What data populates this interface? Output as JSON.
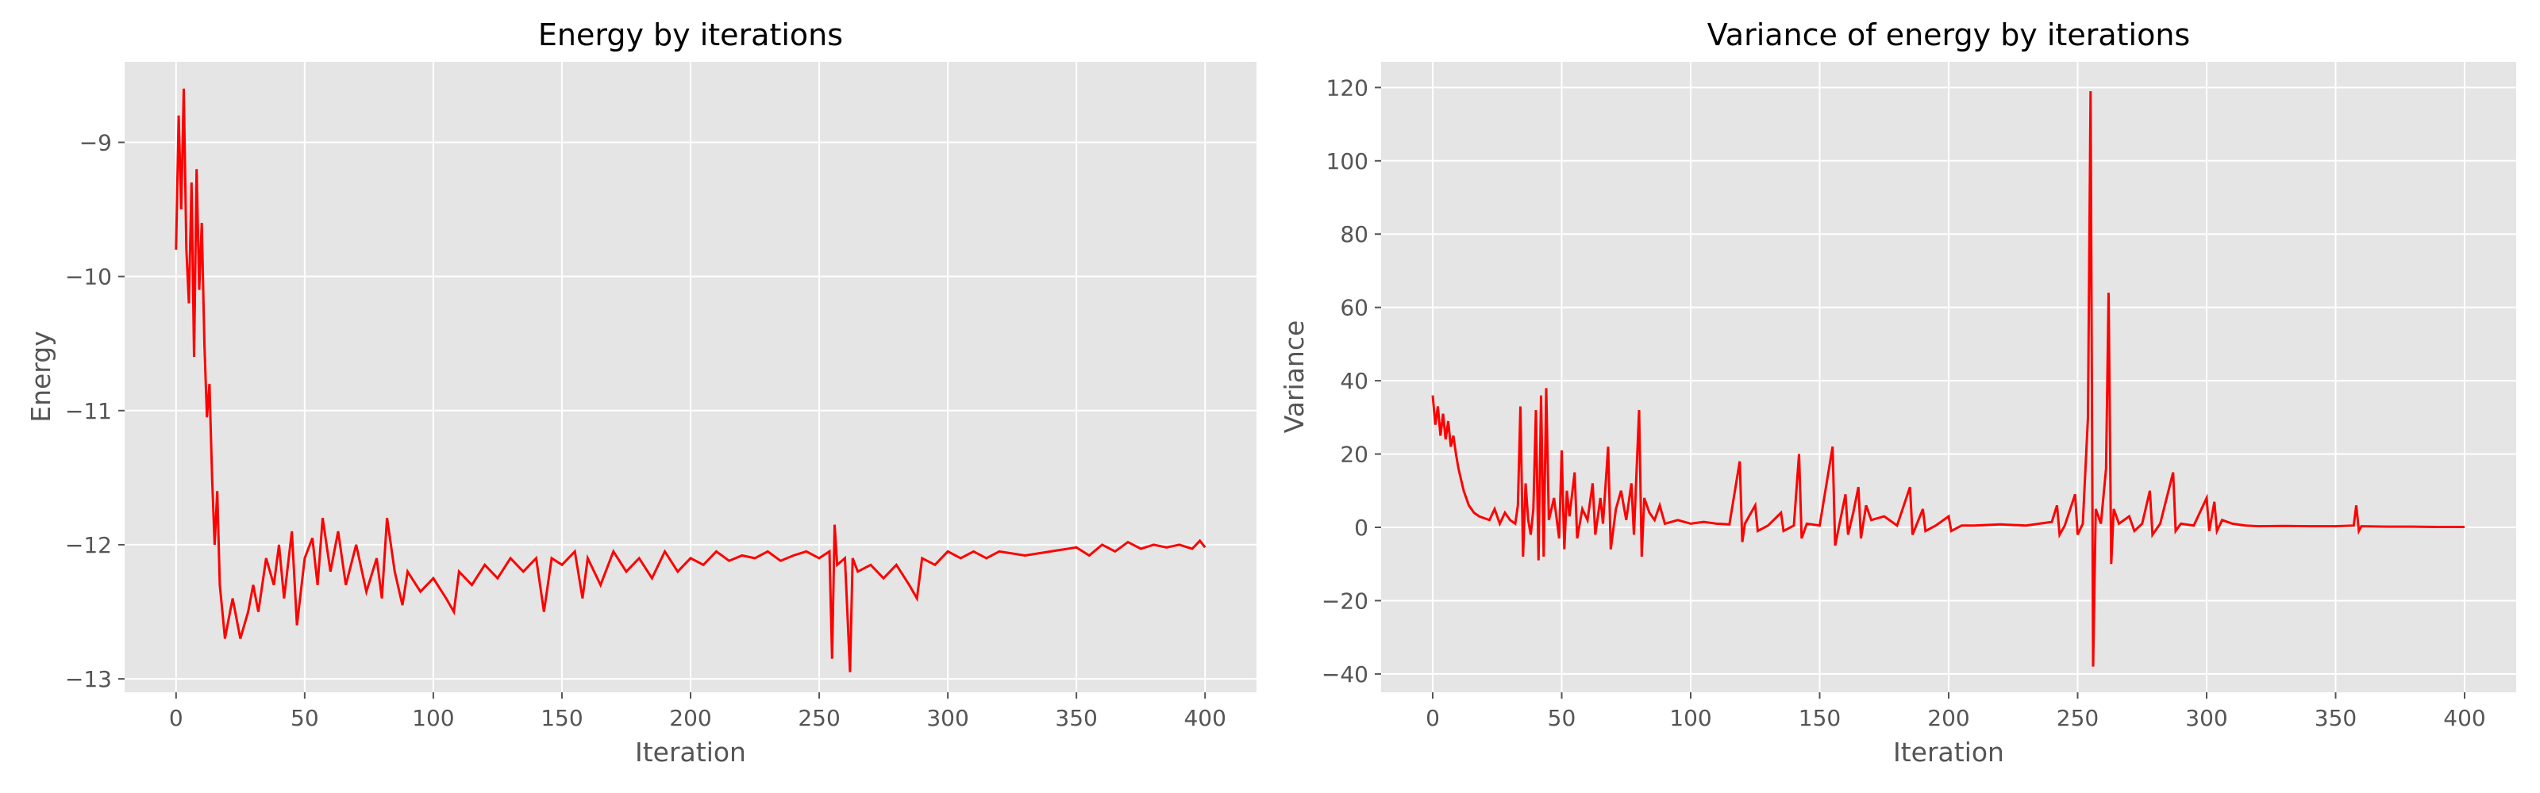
{
  "colors": {
    "background": "#e5e5e5",
    "grid": "#ffffff",
    "line": "#ff0000",
    "text": "#555555"
  },
  "chart_data": [
    {
      "type": "line",
      "title": "Energy by iterations",
      "xlabel": "Iteration",
      "ylabel": "Energy",
      "xlim": [
        -20,
        420
      ],
      "ylim": [
        -13.1,
        -8.4
      ],
      "xticks": [
        0,
        50,
        100,
        150,
        200,
        250,
        300,
        350,
        400
      ],
      "yticks": [
        -13,
        -12,
        -11,
        -10,
        -9
      ],
      "grid": true,
      "series": [
        {
          "points": [
            [
              0,
              -9.8
            ],
            [
              1,
              -8.8
            ],
            [
              2,
              -9.5
            ],
            [
              3,
              -8.6
            ],
            [
              4,
              -9.8
            ],
            [
              5,
              -10.2
            ],
            [
              6,
              -9.3
            ],
            [
              7,
              -10.6
            ],
            [
              8,
              -9.2
            ],
            [
              9,
              -10.1
            ],
            [
              10,
              -9.6
            ],
            [
              11,
              -10.5
            ],
            [
              12,
              -11.05
            ],
            [
              13,
              -10.8
            ],
            [
              14,
              -11.5
            ],
            [
              15,
              -12.0
            ],
            [
              16,
              -11.6
            ],
            [
              17,
              -12.3
            ],
            [
              18,
              -12.5
            ],
            [
              19,
              -12.7
            ],
            [
              20,
              -12.6
            ],
            [
              22,
              -12.4
            ],
            [
              25,
              -12.7
            ],
            [
              28,
              -12.5
            ],
            [
              30,
              -12.3
            ],
            [
              32,
              -12.5
            ],
            [
              35,
              -12.1
            ],
            [
              38,
              -12.3
            ],
            [
              40,
              -12.0
            ],
            [
              42,
              -12.4
            ],
            [
              45,
              -11.9
            ],
            [
              47,
              -12.6
            ],
            [
              50,
              -12.1
            ],
            [
              53,
              -11.95
            ],
            [
              55,
              -12.3
            ],
            [
              57,
              -11.8
            ],
            [
              60,
              -12.2
            ],
            [
              63,
              -11.9
            ],
            [
              66,
              -12.3
            ],
            [
              70,
              -12.0
            ],
            [
              74,
              -12.35
            ],
            [
              78,
              -12.1
            ],
            [
              80,
              -12.4
            ],
            [
              82,
              -11.8
            ],
            [
              85,
              -12.2
            ],
            [
              88,
              -12.45
            ],
            [
              90,
              -12.2
            ],
            [
              95,
              -12.35
            ],
            [
              100,
              -12.25
            ],
            [
              105,
              -12.4
            ],
            [
              108,
              -12.5
            ],
            [
              110,
              -12.2
            ],
            [
              115,
              -12.3
            ],
            [
              120,
              -12.15
            ],
            [
              125,
              -12.25
            ],
            [
              130,
              -12.1
            ],
            [
              135,
              -12.2
            ],
            [
              140,
              -12.1
            ],
            [
              143,
              -12.5
            ],
            [
              146,
              -12.1
            ],
            [
              150,
              -12.15
            ],
            [
              155,
              -12.05
            ],
            [
              158,
              -12.4
            ],
            [
              160,
              -12.1
            ],
            [
              165,
              -12.3
            ],
            [
              170,
              -12.05
            ],
            [
              175,
              -12.2
            ],
            [
              180,
              -12.1
            ],
            [
              185,
              -12.25
            ],
            [
              190,
              -12.05
            ],
            [
              195,
              -12.2
            ],
            [
              200,
              -12.1
            ],
            [
              205,
              -12.15
            ],
            [
              210,
              -12.05
            ],
            [
              215,
              -12.12
            ],
            [
              220,
              -12.08
            ],
            [
              225,
              -12.1
            ],
            [
              230,
              -12.05
            ],
            [
              235,
              -12.12
            ],
            [
              240,
              -12.08
            ],
            [
              245,
              -12.05
            ],
            [
              250,
              -12.1
            ],
            [
              254,
              -12.05
            ],
            [
              255,
              -12.85
            ],
            [
              256,
              -11.85
            ],
            [
              257,
              -12.15
            ],
            [
              260,
              -12.1
            ],
            [
              262,
              -12.95
            ],
            [
              263,
              -12.1
            ],
            [
              265,
              -12.2
            ],
            [
              270,
              -12.15
            ],
            [
              275,
              -12.25
            ],
            [
              280,
              -12.15
            ],
            [
              285,
              -12.3
            ],
            [
              288,
              -12.4
            ],
            [
              290,
              -12.1
            ],
            [
              295,
              -12.15
            ],
            [
              300,
              -12.05
            ],
            [
              305,
              -12.1
            ],
            [
              310,
              -12.05
            ],
            [
              315,
              -12.1
            ],
            [
              320,
              -12.05
            ],
            [
              330,
              -12.08
            ],
            [
              340,
              -12.05
            ],
            [
              350,
              -12.02
            ],
            [
              355,
              -12.08
            ],
            [
              360,
              -12.0
            ],
            [
              365,
              -12.05
            ],
            [
              370,
              -11.98
            ],
            [
              375,
              -12.03
            ],
            [
              380,
              -12.0
            ],
            [
              385,
              -12.02
            ],
            [
              390,
              -12.0
            ],
            [
              395,
              -12.03
            ],
            [
              398,
              -11.97
            ],
            [
              400,
              -12.02
            ]
          ]
        }
      ]
    },
    {
      "type": "line",
      "title": "Variance of energy by iterations",
      "xlabel": "Iteration",
      "ylabel": "Variance",
      "xlim": [
        -20,
        420
      ],
      "ylim": [
        -45,
        127
      ],
      "xticks": [
        0,
        50,
        100,
        150,
        200,
        250,
        300,
        350,
        400
      ],
      "yticks": [
        -40,
        -20,
        0,
        20,
        40,
        60,
        80,
        100,
        120
      ],
      "grid": true,
      "series": [
        {
          "points": [
            [
              0,
              36
            ],
            [
              1,
              28
            ],
            [
              2,
              33
            ],
            [
              3,
              25
            ],
            [
              4,
              31
            ],
            [
              5,
              24
            ],
            [
              6,
              29
            ],
            [
              7,
              22
            ],
            [
              8,
              25
            ],
            [
              9,
              20
            ],
            [
              10,
              16
            ],
            [
              12,
              10
            ],
            [
              14,
              6
            ],
            [
              16,
              4
            ],
            [
              18,
              3
            ],
            [
              20,
              2.5
            ],
            [
              22,
              2
            ],
            [
              24,
              5
            ],
            [
              26,
              1
            ],
            [
              28,
              4
            ],
            [
              30,
              2
            ],
            [
              32,
              1
            ],
            [
              33,
              6
            ],
            [
              34,
              33
            ],
            [
              35,
              -8
            ],
            [
              36,
              12
            ],
            [
              37,
              2
            ],
            [
              38,
              -2
            ],
            [
              39,
              5
            ],
            [
              40,
              32
            ],
            [
              41,
              -9
            ],
            [
              42,
              36
            ],
            [
              43,
              -8
            ],
            [
              44,
              38
            ],
            [
              45,
              2
            ],
            [
              47,
              8
            ],
            [
              49,
              -3
            ],
            [
              50,
              21
            ],
            [
              51,
              -6
            ],
            [
              52,
              10
            ],
            [
              53,
              3
            ],
            [
              55,
              15
            ],
            [
              56,
              -3
            ],
            [
              58,
              5
            ],
            [
              60,
              2
            ],
            [
              62,
              12
            ],
            [
              63,
              -2
            ],
            [
              65,
              8
            ],
            [
              66,
              1
            ],
            [
              68,
              22
            ],
            [
              69,
              -6
            ],
            [
              71,
              5
            ],
            [
              73,
              10
            ],
            [
              75,
              2
            ],
            [
              77,
              12
            ],
            [
              78,
              -2
            ],
            [
              80,
              32
            ],
            [
              81,
              -8
            ],
            [
              82,
              8
            ],
            [
              84,
              4
            ],
            [
              86,
              2
            ],
            [
              88,
              6
            ],
            [
              90,
              1
            ],
            [
              95,
              2
            ],
            [
              100,
              1
            ],
            [
              105,
              1.5
            ],
            [
              110,
              1
            ],
            [
              115,
              0.8
            ],
            [
              119,
              18
            ],
            [
              120,
              -4
            ],
            [
              121,
              1
            ],
            [
              125,
              6
            ],
            [
              126,
              -1
            ],
            [
              130,
              0.5
            ],
            [
              135,
              4
            ],
            [
              136,
              -1
            ],
            [
              140,
              0.5
            ],
            [
              142,
              20
            ],
            [
              143,
              -3
            ],
            [
              145,
              1
            ],
            [
              150,
              0.5
            ],
            [
              155,
              22
            ],
            [
              156,
              -5
            ],
            [
              158,
              2
            ],
            [
              160,
              9
            ],
            [
              161,
              -2
            ],
            [
              163,
              4
            ],
            [
              165,
              11
            ],
            [
              166,
              -3
            ],
            [
              168,
              6
            ],
            [
              170,
              2
            ],
            [
              175,
              3
            ],
            [
              180,
              0.5
            ],
            [
              185,
              11
            ],
            [
              186,
              -2
            ],
            [
              190,
              5
            ],
            [
              191,
              -1
            ],
            [
              195,
              0.5
            ],
            [
              200,
              3
            ],
            [
              201,
              -1
            ],
            [
              205,
              0.5
            ],
            [
              210,
              0.5
            ],
            [
              220,
              0.8
            ],
            [
              230,
              0.5
            ],
            [
              240,
              1.5
            ],
            [
              242,
              6
            ],
            [
              243,
              -2
            ],
            [
              245,
              0.5
            ],
            [
              249,
              9
            ],
            [
              250,
              -2
            ],
            [
              252,
              1
            ],
            [
              254,
              30
            ],
            [
              255,
              119
            ],
            [
              256,
              -38
            ],
            [
              257,
              5
            ],
            [
              259,
              1
            ],
            [
              261,
              16
            ],
            [
              262,
              64
            ],
            [
              263,
              -10
            ],
            [
              264,
              5
            ],
            [
              266,
              1
            ],
            [
              270,
              3
            ],
            [
              272,
              -1
            ],
            [
              275,
              1
            ],
            [
              278,
              10
            ],
            [
              279,
              -2
            ],
            [
              282,
              1
            ],
            [
              287,
              15
            ],
            [
              288,
              -1
            ],
            [
              290,
              1
            ],
            [
              295,
              0.5
            ],
            [
              300,
              8
            ],
            [
              301,
              -1
            ],
            [
              303,
              7
            ],
            [
              304,
              -1
            ],
            [
              306,
              2
            ],
            [
              310,
              1
            ],
            [
              315,
              0.5
            ],
            [
              320,
              0.3
            ],
            [
              330,
              0.4
            ],
            [
              340,
              0.3
            ],
            [
              350,
              0.3
            ],
            [
              357,
              0.5
            ],
            [
              358,
              6
            ],
            [
              359,
              -1
            ],
            [
              360,
              0.3
            ],
            [
              370,
              0.2
            ],
            [
              380,
              0.2
            ],
            [
              390,
              0.1
            ],
            [
              400,
              0.1
            ]
          ]
        }
      ]
    }
  ]
}
